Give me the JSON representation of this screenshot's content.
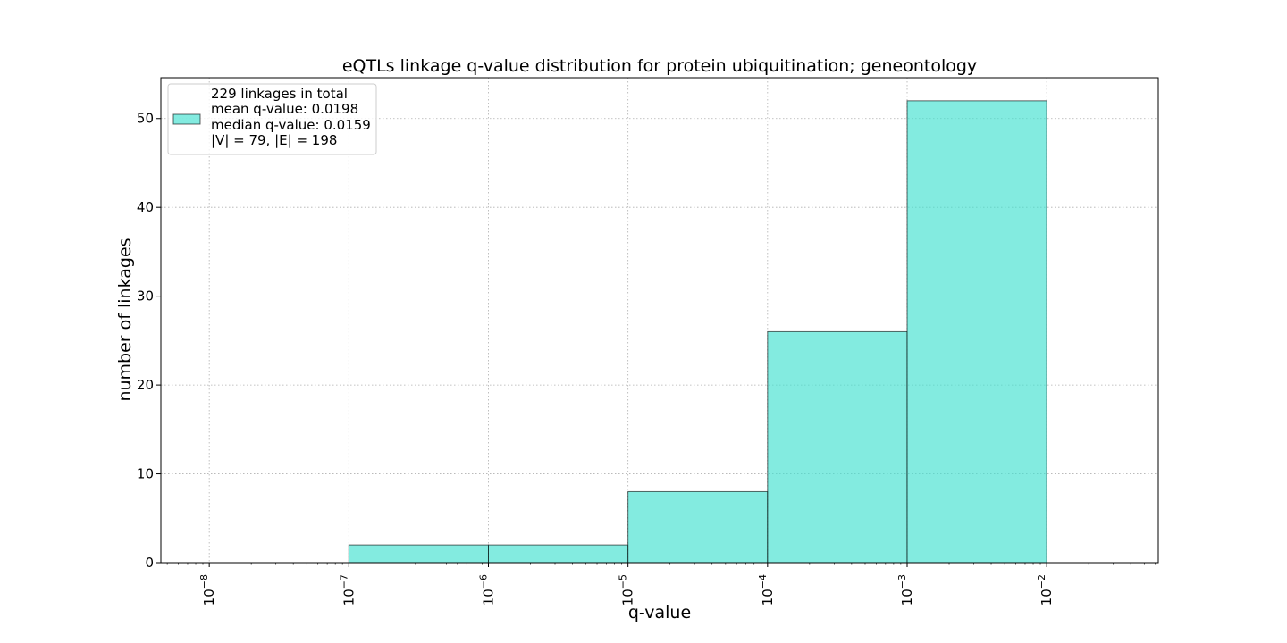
{
  "chart_data": {
    "type": "bar",
    "title": "eQTLs linkage q-value distribution for protein ubiquitination; geneontology",
    "xlabel": "q-value",
    "ylabel": "number of linkages",
    "x_scale": "log",
    "xlim": [
      4.5e-09,
      0.063
    ],
    "ylim": [
      0,
      54.6
    ],
    "grid": true,
    "bin_edges": [
      1e-07,
      1e-06,
      1e-05,
      0.0001,
      0.001,
      0.01
    ],
    "values": [
      2,
      2,
      8,
      26,
      52
    ],
    "bar_color": "#40E0D0",
    "x_ticks": [
      {
        "value": 1e-08,
        "base": "10",
        "exp": "−8"
      },
      {
        "value": 1e-07,
        "base": "10",
        "exp": "−7"
      },
      {
        "value": 1e-06,
        "base": "10",
        "exp": "−6"
      },
      {
        "value": 1e-05,
        "base": "10",
        "exp": "−5"
      },
      {
        "value": 0.0001,
        "base": "10",
        "exp": "−4"
      },
      {
        "value": 0.001,
        "base": "10",
        "exp": "−3"
      },
      {
        "value": 0.01,
        "base": "10",
        "exp": "−2"
      }
    ],
    "y_ticks": [
      0,
      10,
      20,
      30,
      40,
      50
    ],
    "legend": {
      "placement": "upper-left",
      "lines": [
        "229 linkages in total",
        "mean q-value: 0.0198",
        "median q-value: 0.0159",
        "|V| = 79, |E| = 198"
      ]
    }
  }
}
